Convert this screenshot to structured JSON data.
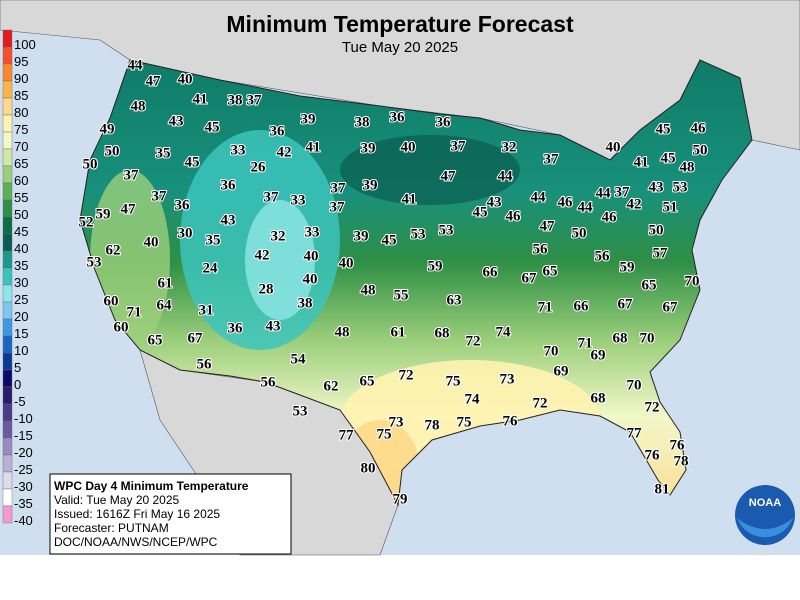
{
  "header": {
    "title": "Minimum Temperature Forecast",
    "subtitle": "Tue May 20 2025"
  },
  "legend": {
    "items": [
      {
        "value": 100,
        "color": "#e41a1c"
      },
      {
        "value": 95,
        "color": "#f4502a"
      },
      {
        "value": 90,
        "color": "#f88a2c"
      },
      {
        "value": 85,
        "color": "#fbb44c"
      },
      {
        "value": 80,
        "color": "#fdd98a"
      },
      {
        "value": 75,
        "color": "#fff3b0"
      },
      {
        "value": 70,
        "color": "#f2f8c8"
      },
      {
        "value": 65,
        "color": "#cfe8a4"
      },
      {
        "value": 60,
        "color": "#9ccf7c"
      },
      {
        "value": 55,
        "color": "#5fae5a"
      },
      {
        "value": 50,
        "color": "#2e8f45"
      },
      {
        "value": 45,
        "color": "#0c6e44"
      },
      {
        "value": 40,
        "color": "#0a5d50"
      },
      {
        "value": 35,
        "color": "#1a9a8c"
      },
      {
        "value": 30,
        "color": "#3cc4bc"
      },
      {
        "value": 25,
        "color": "#8ee6e6"
      },
      {
        "value": 20,
        "color": "#7cc8f0"
      },
      {
        "value": 15,
        "color": "#3c9be0"
      },
      {
        "value": 10,
        "color": "#1866c0"
      },
      {
        "value": 5,
        "color": "#0a3a96"
      },
      {
        "value": 0,
        "color": "#0a0a6a"
      },
      {
        "value": -5,
        "color": "#2a1a6a"
      },
      {
        "value": -10,
        "color": "#4a3a8a"
      },
      {
        "value": -15,
        "color": "#6a5aa0"
      },
      {
        "value": -20,
        "color": "#9a8ac0"
      },
      {
        "value": -25,
        "color": "#bab0d4"
      },
      {
        "value": -30,
        "color": "#dcdce8"
      },
      {
        "value": -35,
        "color": "#ffffff"
      },
      {
        "value": -40,
        "color": "#f49ad0"
      }
    ]
  },
  "labels": [
    44,
    47,
    40,
    48,
    41,
    38,
    37,
    49,
    43,
    45,
    36,
    39,
    38,
    36,
    36,
    50,
    35,
    45,
    33,
    42,
    41,
    39,
    40,
    37,
    32,
    37,
    40,
    45,
    46,
    26,
    37,
    36,
    37,
    39,
    47,
    44,
    41,
    45,
    48,
    50,
    50,
    37,
    36,
    37,
    33,
    37,
    41,
    43,
    44,
    46,
    44,
    44,
    37,
    42,
    43,
    53,
    52,
    59,
    47,
    43,
    45,
    46,
    47,
    46,
    51,
    40,
    30,
    35,
    32,
    33,
    39,
    45,
    53,
    53,
    50,
    50,
    62,
    42,
    40,
    56,
    56,
    57,
    53,
    24,
    40,
    59,
    66,
    67,
    65,
    59,
    61,
    40,
    28,
    48,
    55,
    63,
    65,
    70,
    60,
    64,
    31,
    38,
    71,
    66,
    67,
    67,
    71,
    60,
    36,
    43,
    48,
    61,
    68,
    72,
    74,
    68,
    70,
    65,
    67,
    71,
    69,
    70,
    54,
    56,
    72,
    75,
    73,
    69,
    62,
    65,
    56,
    70,
    74,
    72,
    68,
    72,
    53,
    73,
    78,
    75,
    76,
    77,
    75,
    77,
    76,
    76,
    78,
    80,
    81,
    79
  ],
  "info": {
    "lines": [
      "WPC Day 4 Minimum Temperature",
      "Valid: Tue May 20 2025",
      "Issued: 1616Z Fri May 16 2025",
      "Forecaster: PUTNAM",
      "DOC/NOAA/NWS/NCEP/WPC"
    ]
  },
  "logo": "NOAA"
}
